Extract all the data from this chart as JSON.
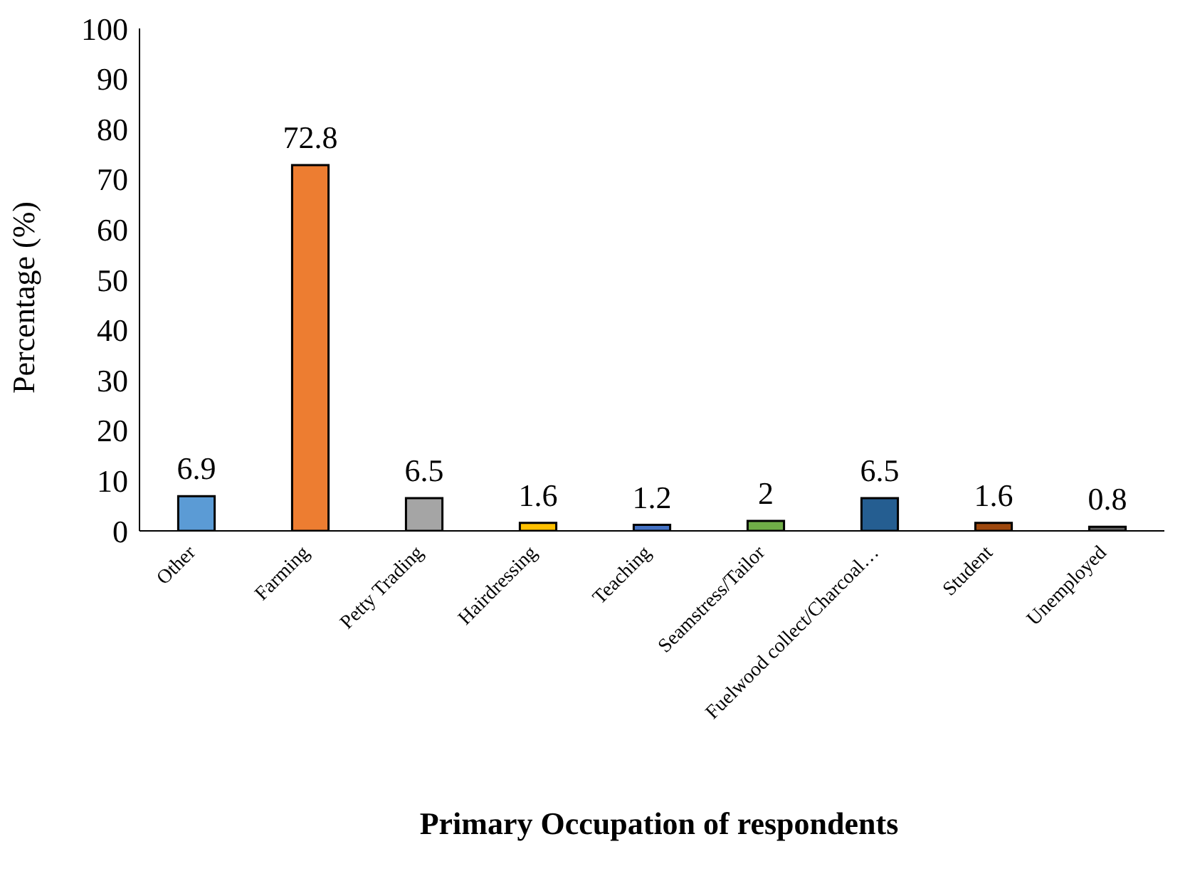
{
  "chart_data": {
    "type": "bar",
    "xlabel": "Primary Occupation of respondents",
    "ylabel": "Percentage (%)",
    "categories": [
      "Other",
      "Farming",
      "Petty Trading",
      "Hairdressing",
      "Teaching",
      "Seamstress/Tailor",
      "Fuelwood collect/Charcoal…",
      "Student",
      "Unemployed"
    ],
    "values": [
      6.9,
      72.8,
      6.5,
      1.6,
      1.2,
      2,
      6.5,
      1.6,
      0.8
    ],
    "colors": [
      "#5b9bd5",
      "#ed7d31",
      "#a5a5a5",
      "#ffc000",
      "#4472c4",
      "#70ad47",
      "#255e91",
      "#9e480e",
      "#636363"
    ],
    "ylim": [
      0,
      100
    ],
    "yticks": [
      0,
      10,
      20,
      30,
      40,
      50,
      60,
      70,
      80,
      90,
      100
    ],
    "grid": false,
    "legend": false,
    "data_labels": true
  }
}
